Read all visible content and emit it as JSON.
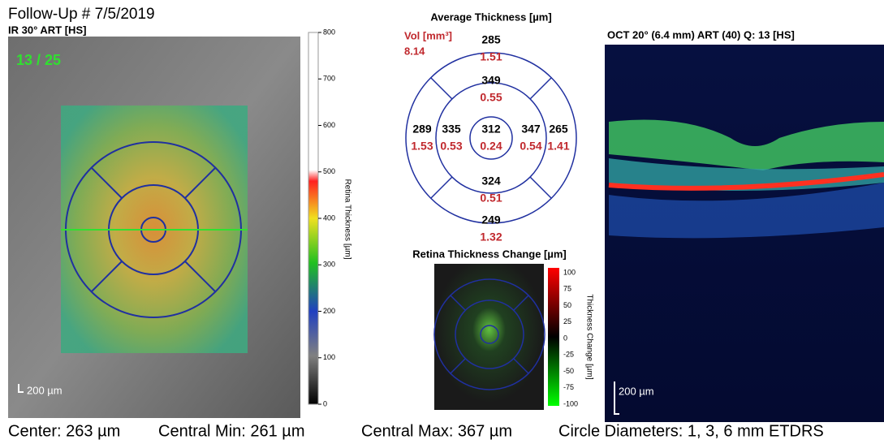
{
  "header": {
    "title": "Follow-Up # 7/5/2019"
  },
  "ir": {
    "title": "IR 30° ART [HS]",
    "counter": "13 / 25",
    "scale": "200 µm",
    "colorbar": {
      "label": "Retina Thickness [µm]",
      "ticks": [
        "800",
        "700",
        "600",
        "500",
        "400",
        "300",
        "200",
        "100",
        "0"
      ]
    }
  },
  "thickness": {
    "title": "Average Thickness [µm]",
    "vol_label": "Vol [mm³]",
    "vol": "8.14",
    "sectors": {
      "center": [
        "312",
        "0.24"
      ],
      "inner_top": [
        "349",
        "0.55"
      ],
      "inner_left": [
        "335",
        "0.53"
      ],
      "inner_right": [
        "347",
        "0.54"
      ],
      "inner_bottom": [
        "324",
        "0.51"
      ],
      "outer_top": [
        "285",
        "1.51"
      ],
      "outer_left": [
        "289",
        "1.53"
      ],
      "outer_right": [
        "265",
        "1.41"
      ],
      "outer_bottom": [
        "249",
        "1.32"
      ]
    }
  },
  "change": {
    "title": "Retina Thickness Change [µm]",
    "colorbar": {
      "label": "Thickness Change [µm]",
      "ticks": [
        "100",
        "75",
        "50",
        "25",
        "0",
        "-25",
        "-50",
        "-75",
        "-100"
      ]
    }
  },
  "oct": {
    "title": "OCT 20° (6.4 mm) ART (40) Q: 13 [HS]",
    "scale": "200 µm"
  },
  "footer": {
    "center": "Center: 263 µm",
    "central_min": "Central Min: 261 µm",
    "central_max": "Central Max: 367 µm",
    "circles": "Circle Diameters:  1, 3, 6 mm ETDRS"
  }
}
